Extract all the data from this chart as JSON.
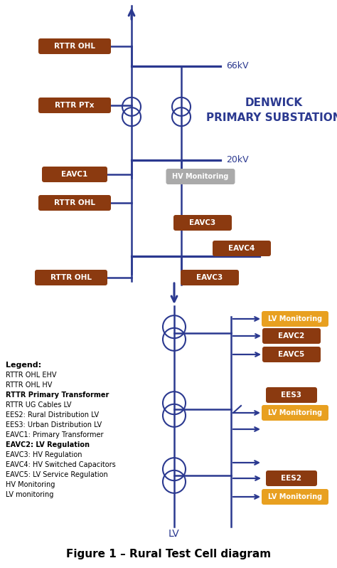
{
  "fig_width": 4.74,
  "fig_height": 7.98,
  "bg_color": "#ffffff",
  "line_color": "#2b3990",
  "box_brown": "#8B3A10",
  "box_orange": "#E8A020",
  "box_gray": "#aaaaaa",
  "title_color": "#2b3990",
  "figure_caption": "Figure 1 – Rural Test Cell diagram",
  "substation_text": "DENWICK\nPRIMARY SUBSTATION",
  "voltage_66": "66kV",
  "voltage_20": "20kV",
  "voltage_lv": "LV"
}
